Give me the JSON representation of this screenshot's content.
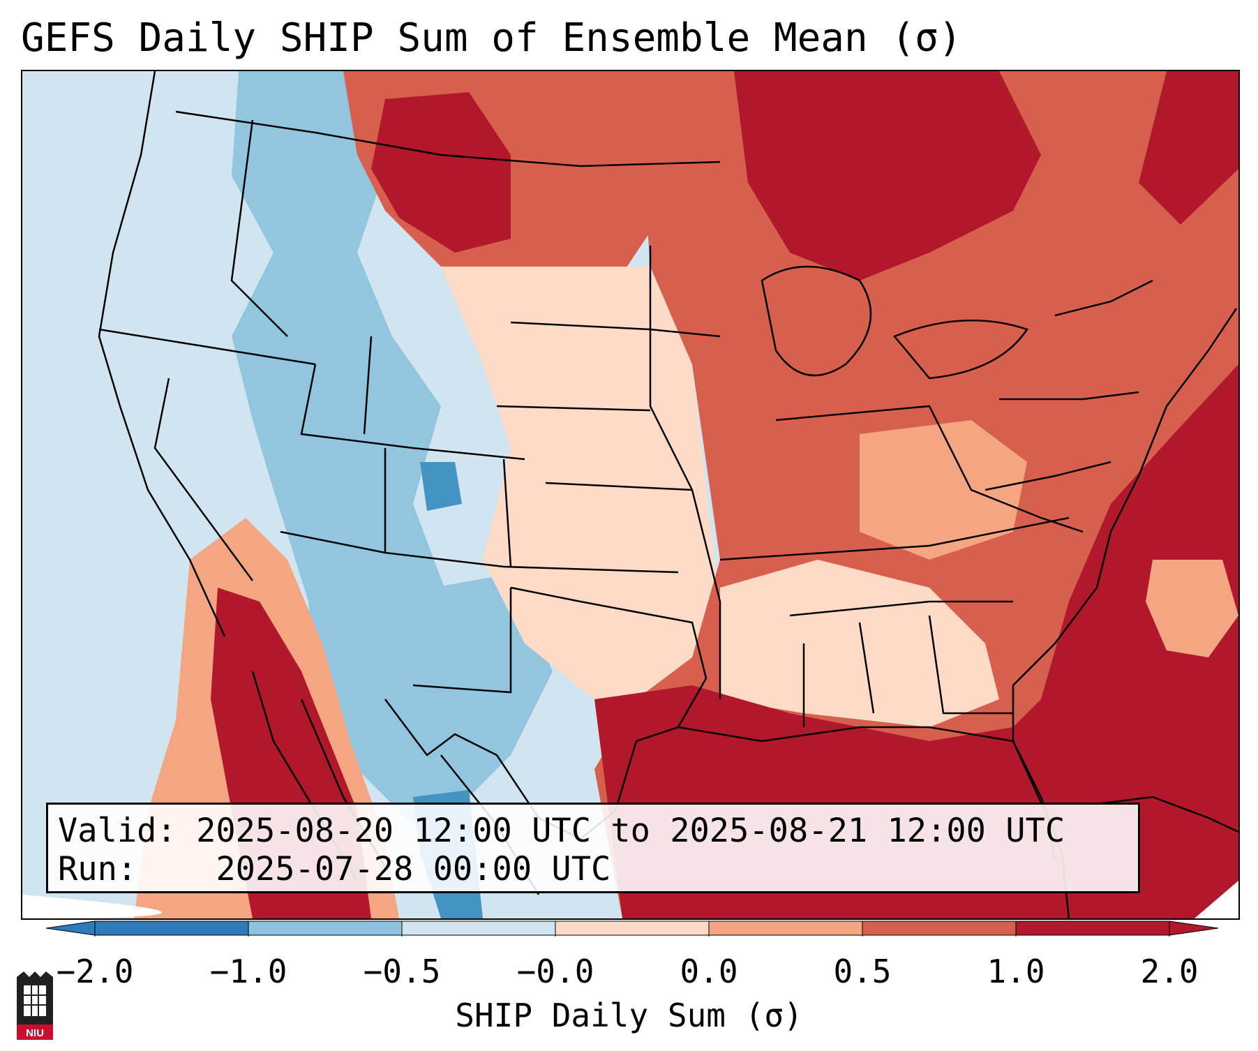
{
  "title": "GEFS Daily SHIP Sum of Ensemble Mean (σ)",
  "info": {
    "valid_label": "Valid:",
    "valid_value": "2025-08-20 12:00 UTC to 2025-08-21 12:00 UTC",
    "run_label": "Run:",
    "run_value": "2025-07-28 00:00 UTC"
  },
  "colorbar": {
    "label": "SHIP Daily Sum (σ)",
    "ticks": [
      "-2.0",
      "-1.0",
      "-0.5",
      "-0.0",
      "0.0",
      "0.5",
      "1.0",
      "2.0"
    ],
    "colors": [
      "#2f7ab8",
      "#8fc2de",
      "#d1e5f0",
      "#fbdbc7",
      "#f4a582",
      "#d6604d",
      "#b2182b"
    ],
    "extend": "both"
  },
  "map": {
    "projection": "Lambert Conformal (CONUS)",
    "field_colors": {
      "strong_neg": "#4393c3",
      "neg": "#92c5de",
      "weak_neg": "#d1e5f0",
      "weak_pos": "#fddbc7",
      "pos": "#f4a582",
      "mod_pos": "#d6604d",
      "strong_pos": "#b2182b"
    }
  },
  "logo": {
    "text": "NIU"
  }
}
